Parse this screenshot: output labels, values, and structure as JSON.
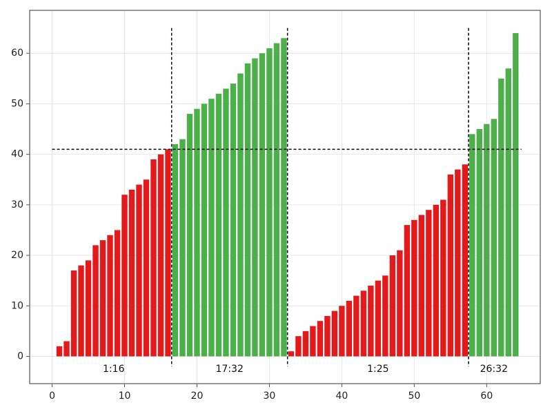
{
  "chart_data": {
    "type": "bar",
    "title": "",
    "xlabel": "",
    "ylabel": "",
    "xlim": [
      -3.1,
      67.4
    ],
    "ylim": [
      -5.4,
      68.5
    ],
    "grid": true,
    "xticks": [
      0,
      10,
      20,
      30,
      40,
      50,
      60
    ],
    "yticks": [
      0,
      10,
      20,
      30,
      40,
      50,
      60
    ],
    "x": [
      1,
      2,
      3,
      4,
      5,
      6,
      7,
      8,
      9,
      10,
      11,
      12,
      13,
      14,
      15,
      16,
      17,
      18,
      19,
      20,
      21,
      22,
      23,
      24,
      25,
      26,
      27,
      28,
      29,
      30,
      31,
      32,
      33,
      34,
      35,
      36,
      37,
      38,
      39,
      40,
      41,
      42,
      43,
      44,
      45,
      46,
      47,
      48,
      49,
      50,
      51,
      52,
      53,
      54,
      55,
      56,
      57,
      58,
      59,
      60,
      61,
      62,
      63,
      64
    ],
    "values": [
      2,
      3,
      17,
      18,
      19,
      22,
      23,
      24,
      25,
      32,
      33,
      34,
      35,
      39,
      40,
      41,
      42,
      43,
      48,
      49,
      50,
      51,
      52,
      53,
      54,
      56,
      58,
      59,
      60,
      61,
      62,
      63,
      1,
      4,
      5,
      6,
      7,
      8,
      9,
      10,
      11,
      12,
      13,
      14,
      15,
      16,
      20,
      21,
      26,
      27,
      28,
      29,
      30,
      31,
      36,
      37,
      38,
      44,
      45,
      46,
      47,
      55,
      57,
      64
    ],
    "colors": {
      "below": "#e31a1c",
      "above": "#4daf4a",
      "reference": "#000000",
      "grid": "#e6e6e6",
      "frame": "#555555"
    },
    "threshold": 41,
    "segment_boundaries": [
      16.5,
      32.5,
      57.5
    ],
    "segments": [
      {
        "label": "1:16",
        "x_center": 8.5
      },
      {
        "label": "17:32",
        "x_center": 24.5
      },
      {
        "label": "1:25",
        "x_center": 45.0
      },
      {
        "label": "26:32",
        "x_center": 61.0
      }
    ]
  }
}
